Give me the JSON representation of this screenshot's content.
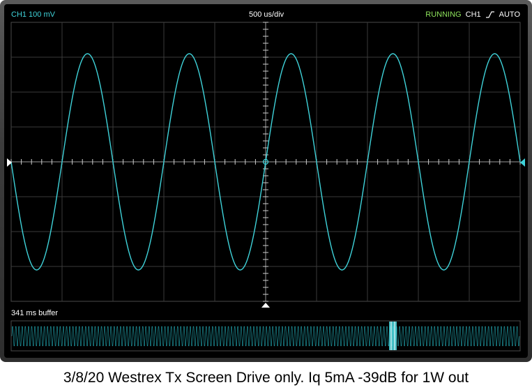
{
  "header": {
    "channel_scale": "CH1 100 mV",
    "timebase": "500 us/div",
    "run_status": "RUNNING",
    "trigger_channel": "CH1",
    "trigger_slope_icon": "rising-edge-icon",
    "trigger_mode": "AUTO"
  },
  "buffer": {
    "label": "341 ms buffer"
  },
  "caption": "3/8/20 Westrex Tx Screen Drive only. Iq 5mA -39dB for 1W out",
  "colors": {
    "trace": "#3fd3da",
    "grid": "#3a3a3a",
    "running": "#8ee35b"
  },
  "chart_data": {
    "type": "line",
    "x_divisions": 10,
    "y_divisions": 8,
    "x_units_per_div": "500 us",
    "y_units_per_div": "100 mV",
    "signal": {
      "shape": "sine",
      "cycles_on_screen": 5,
      "start_phase": "falling through zero",
      "amplitude_divs": 3.1,
      "offset_divs": 0
    }
  }
}
